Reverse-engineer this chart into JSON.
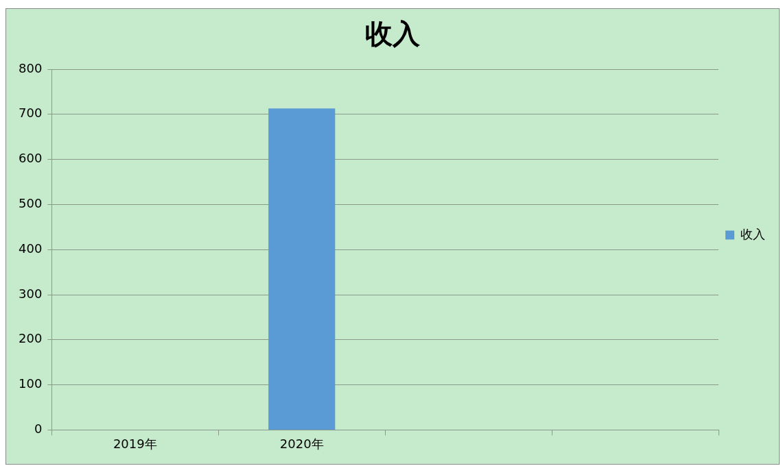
{
  "chart_data": {
    "type": "bar",
    "title": "收入",
    "categories": [
      "2019年",
      "2020年",
      null,
      null
    ],
    "series": [
      {
        "name": "收入",
        "color": "#5b9bd5",
        "values": [
          null,
          713,
          null,
          null
        ]
      }
    ],
    "ylim": [
      0,
      800
    ],
    "yticks": [
      0,
      100,
      200,
      300,
      400,
      500,
      600,
      700,
      800
    ],
    "grid": "y",
    "legend": "right"
  }
}
